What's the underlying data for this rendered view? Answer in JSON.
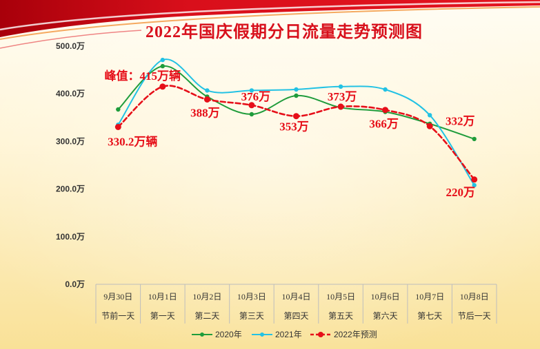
{
  "chart_data": {
    "type": "line",
    "title": "2022年国庆假期分日流量走势预测图",
    "categories": [
      "9月30日",
      "10月1日",
      "10月2日",
      "10月3日",
      "10月4日",
      "10月5日",
      "10月6日",
      "10月7日",
      "10月8日"
    ],
    "category_sublabels": [
      "节前一天",
      "第一天",
      "第二天",
      "第三天",
      "第四天",
      "第五天",
      "第六天",
      "第七天",
      "节后一天"
    ],
    "y_tick_values": [
      0,
      100,
      200,
      300,
      400,
      500
    ],
    "y_tick_labels": [
      "0.0万",
      "100.0万",
      "200.0万",
      "300.0万",
      "400.0万",
      "500.0万"
    ],
    "ylim": [
      0,
      500
    ],
    "grid": false,
    "smooth": true,
    "legend_position": "bottom",
    "series": [
      {
        "name": "2020年",
        "color": "#1f9c3b",
        "line_style": "solid",
        "values": [
          367,
          458,
          394,
          357,
          396,
          371,
          362,
          337,
          305
        ]
      },
      {
        "name": "2021年",
        "color": "#22c2e4",
        "line_style": "solid",
        "values": [
          335,
          471,
          407,
          407,
          409,
          415,
          409,
          355,
          208
        ]
      },
      {
        "name": "2022年预测",
        "color": "#e60f19",
        "line_style": "dashed",
        "values": [
          330.2,
          415,
          388,
          376,
          353,
          373,
          366,
          332,
          220
        ],
        "data_labels": [
          "330.2万辆",
          "峰值：415万辆",
          "388万",
          "376万",
          "353万",
          "373万",
          "366万",
          "332万",
          "220万"
        ]
      }
    ]
  },
  "colors": {
    "title": "#d8101c",
    "data_label": "#e60f19",
    "axis_text": "#333333",
    "axis_line": "#bdbdbd",
    "header_red": "#d90f1b"
  }
}
